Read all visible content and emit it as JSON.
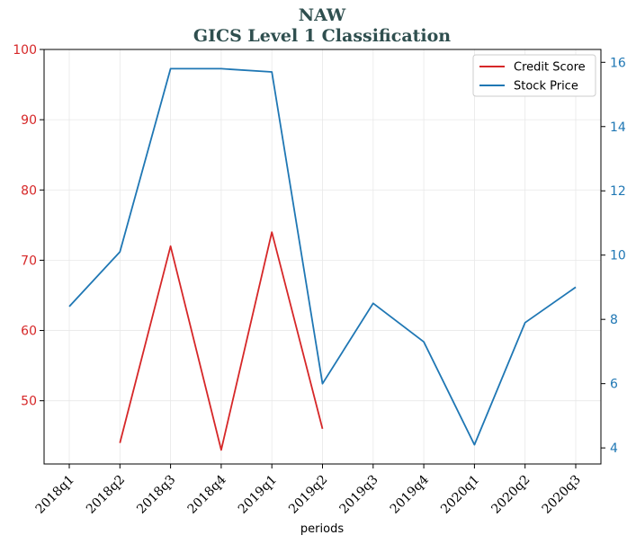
{
  "chart_data": {
    "type": "line",
    "title": "NAW",
    "subtitle": "GICS Level 1 Classification",
    "xlabel": "periods",
    "categories": [
      "2018q1",
      "2018q2",
      "2018q3",
      "2018q4",
      "2019q1",
      "2019q2",
      "2019q3",
      "2019q4",
      "2020q1",
      "2020q2",
      "2020q3"
    ],
    "left_axis": {
      "ylim": [
        41,
        100
      ],
      "ticks": [
        50,
        60,
        70,
        80,
        90,
        100
      ],
      "color": "#d62728"
    },
    "right_axis": {
      "ylim": [
        3.5,
        16.4
      ],
      "ticks": [
        4,
        6,
        8,
        10,
        12,
        14,
        16
      ],
      "color": "#1f77b4"
    },
    "series": [
      {
        "name": "Credit Score",
        "axis": "left",
        "color": "#d62728",
        "values": [
          null,
          44,
          72,
          43,
          74,
          46,
          null,
          null,
          null,
          null,
          null
        ]
      },
      {
        "name": "Stock Price",
        "axis": "right",
        "color": "#1f77b4",
        "values": [
          8.4,
          10.1,
          15.8,
          15.8,
          15.7,
          6.0,
          8.5,
          7.3,
          4.1,
          7.9,
          9.0
        ]
      }
    ],
    "grid": true,
    "legend": "top-right"
  }
}
